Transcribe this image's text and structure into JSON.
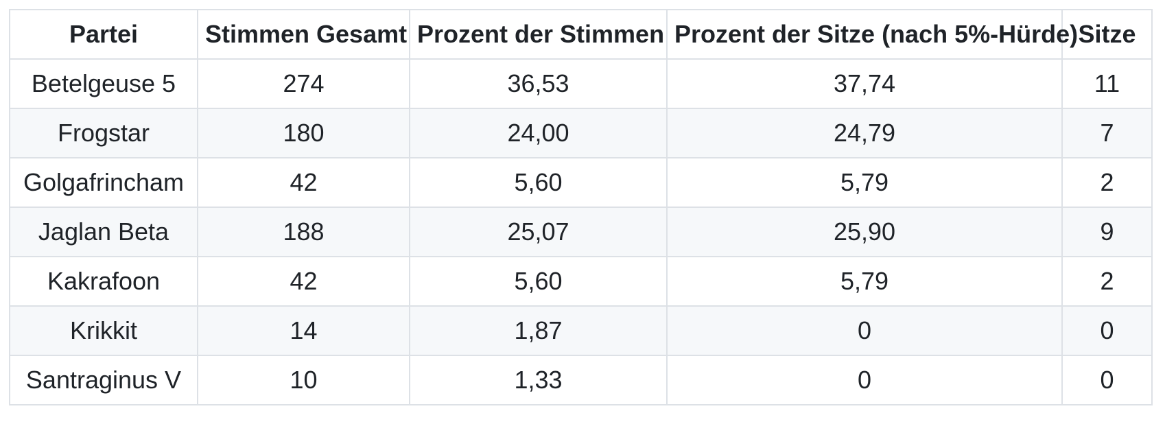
{
  "table": {
    "columns": [
      "Partei",
      "Stimmen Gesamt",
      "Prozent der Stimmen",
      "Prozent der Sitze (nach 5%-Hürde)",
      "Sitze"
    ],
    "rows": [
      {
        "cells": [
          "Betelgeuse 5",
          "274",
          "36,53",
          "37,74",
          "11"
        ]
      },
      {
        "cells": [
          "Frogstar",
          "180",
          "24,00",
          "24,79",
          "7"
        ]
      },
      {
        "cells": [
          "Golgafrincham",
          "42",
          "5,60",
          "5,79",
          "2"
        ]
      },
      {
        "cells": [
          "Jaglan Beta",
          "188",
          "25,07",
          "25,90",
          "9"
        ]
      },
      {
        "cells": [
          "Kakrafoon",
          "42",
          "5,60",
          "5,79",
          "2"
        ]
      },
      {
        "cells": [
          "Krikkit",
          "14",
          "1,87",
          "0",
          "0"
        ]
      },
      {
        "cells": [
          "Santraginus V",
          "10",
          "1,33",
          "0",
          "0"
        ]
      }
    ]
  },
  "colors": {
    "background": "#ffffff",
    "border": "#dde1e6",
    "stripe_row_background": "#f6f8fa",
    "text": "#1f2328"
  }
}
